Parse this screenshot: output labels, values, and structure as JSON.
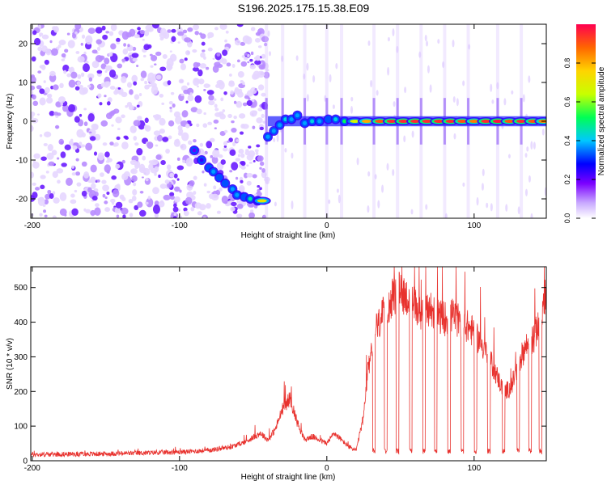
{
  "figure": {
    "title": "S196.2025.175.15.38.E09"
  },
  "colors": {
    "snr_line": "#e8322e",
    "axis": "#000000",
    "speckle": "#7a3cf0"
  },
  "chart_data": [
    {
      "type": "heatmap",
      "title": "S196.2025.175.15.38.E09",
      "xlabel": "Height of straight line (km)",
      "ylabel": "Frequency (Hz)",
      "xlim": [
        -201,
        149
      ],
      "ylim": [
        -25,
        25
      ],
      "xticks": [
        -200,
        -100,
        0,
        100
      ],
      "yticks": [
        20,
        10,
        0,
        -10,
        -20
      ],
      "colorbar": {
        "label": "Normalized spectral amplitude",
        "range": [
          0,
          1
        ],
        "ticks": [
          "0.0",
          "0.2",
          "0.4",
          "0.6",
          "0.8"
        ],
        "colormap": [
          "#ffffff",
          "#7b00ff",
          "#0000ff",
          "#00c8ff",
          "#00ff55",
          "#c8ff00",
          "#ffd400",
          "#ff6600",
          "#ff0050"
        ]
      },
      "ridge": {
        "note_units": "x in km, y in Hz, amp normalized",
        "points": [
          {
            "x": -90,
            "y": -7.5,
            "a": 0.15
          },
          {
            "x": -85,
            "y": -10,
            "a": 0.2
          },
          {
            "x": -80,
            "y": -12,
            "a": 0.3
          },
          {
            "x": -77,
            "y": -13,
            "a": 0.35
          },
          {
            "x": -73,
            "y": -14.5,
            "a": 0.3
          },
          {
            "x": -69,
            "y": -16,
            "a": 0.3
          },
          {
            "x": -64,
            "y": -17.5,
            "a": 0.35
          },
          {
            "x": -61,
            "y": -19,
            "a": 0.35
          },
          {
            "x": -56,
            "y": -19.5,
            "a": 0.3
          },
          {
            "x": -52,
            "y": -20,
            "a": 0.45
          },
          {
            "x": -47,
            "y": -20.5,
            "a": 0.6
          },
          {
            "x": -44,
            "y": -20.5,
            "a": 0.7
          },
          {
            "x": -40,
            "y": -4,
            "a": 0.35
          },
          {
            "x": -36,
            "y": -2.5,
            "a": 0.35
          },
          {
            "x": -32,
            "y": -1,
            "a": 0.35
          },
          {
            "x": -28,
            "y": 0.5,
            "a": 0.4
          },
          {
            "x": -24,
            "y": 0.5,
            "a": 0.35
          },
          {
            "x": -20,
            "y": 1.5,
            "a": 0.35
          },
          {
            "x": -15,
            "y": -0.5,
            "a": 0.35
          },
          {
            "x": -10,
            "y": 0,
            "a": 0.4
          },
          {
            "x": -5,
            "y": 0,
            "a": 0.35
          },
          {
            "x": 1,
            "y": 0.5,
            "a": 0.3
          },
          {
            "x": 6,
            "y": 0.5,
            "a": 0.4
          },
          {
            "x": 12,
            "y": 0,
            "a": 0.5
          },
          {
            "x": 19,
            "y": 0,
            "a": 0.65
          },
          {
            "x": 27,
            "y": 0,
            "a": 0.8
          },
          {
            "x": 36,
            "y": 0,
            "a": 0.9
          },
          {
            "x": 44,
            "y": 0,
            "a": 0.95
          },
          {
            "x": 52,
            "y": 0,
            "a": 0.95
          },
          {
            "x": 60,
            "y": 0,
            "a": 0.95
          },
          {
            "x": 68,
            "y": 0,
            "a": 0.95
          },
          {
            "x": 76,
            "y": 0,
            "a": 0.95
          },
          {
            "x": 84,
            "y": 0,
            "a": 0.95
          },
          {
            "x": 92,
            "y": 0,
            "a": 0.9
          },
          {
            "x": 100,
            "y": 0,
            "a": 0.85
          },
          {
            "x": 108,
            "y": 0,
            "a": 0.95
          },
          {
            "x": 116,
            "y": 0,
            "a": 0.98
          },
          {
            "x": 124,
            "y": 0,
            "a": 0.9
          },
          {
            "x": 132,
            "y": 0,
            "a": 0.95
          },
          {
            "x": 140,
            "y": 0,
            "a": 0.9
          },
          {
            "x": 147,
            "y": 0,
            "a": 0.85
          }
        ]
      },
      "vertical_streaks": [
        -41,
        -30,
        -15,
        0,
        10,
        32,
        48,
        64,
        80,
        96,
        116,
        132
      ],
      "speckle_region": [
        -201,
        -40
      ],
      "speckle_count": 900
    },
    {
      "type": "line",
      "xlabel": "Height of straight line (km)",
      "ylabel": "SNR (10 * v/v)",
      "xlim": [
        -201,
        149
      ],
      "ylim": [
        0,
        560
      ],
      "xticks": [
        -200,
        -100,
        0,
        100
      ],
      "yticks": [
        0,
        100,
        200,
        300,
        400,
        500
      ],
      "series": [
        {
          "control_points": {
            "x": [
              -201,
              -150,
              -100,
              -80,
              -65,
              -55,
              -45,
              -40,
              -35,
              -30,
              -25,
              -20,
              -15,
              -10,
              -5,
              0,
              5,
              10,
              15,
              20,
              25,
              28,
              30,
              33,
              36,
              40,
              45,
              50,
              55,
              60,
              65,
              70,
              75,
              80,
              85,
              90,
              95,
              100,
              105,
              110,
              115,
              120,
              125,
              130,
              135,
              140,
              145,
              149
            ],
            "y": [
              18,
              20,
              25,
              30,
              40,
              55,
              80,
              60,
              90,
              150,
              180,
              110,
              60,
              70,
              60,
              50,
              80,
              60,
              40,
              30,
              130,
              260,
              320,
              380,
              400,
              440,
              470,
              490,
              470,
              450,
              420,
              440,
              420,
              410,
              420,
              400,
              390,
              370,
              340,
              300,
              250,
              200,
              210,
              280,
              330,
              350,
              400,
              500
            ]
          },
          "dropouts_x": [
            32,
            40,
            48,
            57,
            66,
            74,
            83,
            92,
            101,
            110,
            120,
            130,
            138,
            145
          ],
          "dropout_value": 20
        }
      ]
    }
  ]
}
